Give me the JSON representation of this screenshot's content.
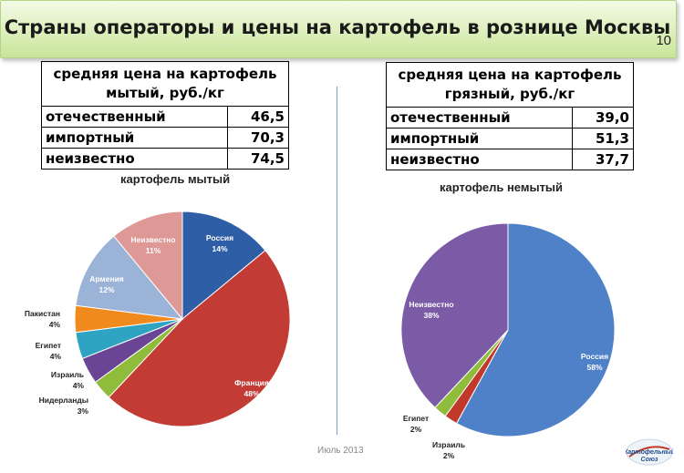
{
  "slide": {
    "title": "Страны операторы и цены на картофель  в рознице Москвы",
    "page_number": "10",
    "date": "Июль 2013",
    "logo_text": [
      "Картофельный",
      "Союз"
    ]
  },
  "price_tables": [
    {
      "header_lines": [
        "средняя цена на картофель",
        "мытый, руб./кг"
      ],
      "rows": [
        {
          "label": "отечественный",
          "value": "46,5"
        },
        {
          "label": "импортный",
          "value": "70,3"
        },
        {
          "label": "неизвестно",
          "value": "74,5"
        }
      ]
    },
    {
      "header_lines": [
        "средняя цена на картофель",
        "грязный, руб./кг"
      ],
      "rows": [
        {
          "label": "отечественный",
          "value": "39,0"
        },
        {
          "label": "импортный",
          "value": "51,3"
        },
        {
          "label": "неизвестно",
          "value": "37,7"
        }
      ]
    }
  ],
  "chart_data": [
    {
      "type": "pie",
      "title": "картофель мытый",
      "slices": [
        {
          "name": "Россия",
          "value": 14,
          "label": "14%",
          "color": "#2e5fa6"
        },
        {
          "name": "Франция",
          "value": 48,
          "label": "48%",
          "color": "#c23b35"
        },
        {
          "name": "Нидерланды",
          "value": 3,
          "label": "3%",
          "color": "#8fbc3a"
        },
        {
          "name": "Израиль",
          "value": 4,
          "label": "4%",
          "color": "#6a4596"
        },
        {
          "name": "Египет",
          "value": 4,
          "label": "4%",
          "color": "#2fa4c2"
        },
        {
          "name": "Пакистан",
          "value": 4,
          "label": "4%",
          "color": "#f08a1c"
        },
        {
          "name": "Армения",
          "value": 12,
          "label": "12%",
          "color": "#9cb3d8"
        },
        {
          "name": "Неизвестно",
          "value": 11,
          "label": "11%",
          "color": "#de9896"
        }
      ]
    },
    {
      "type": "pie",
      "title": "картофель немытый",
      "slices": [
        {
          "name": "Россия",
          "value": 58,
          "label": "58%",
          "color": "#4f81c9"
        },
        {
          "name": "Израиль",
          "value": 2,
          "label": "2%",
          "color": "#c0392b"
        },
        {
          "name": "Египет",
          "value": 2,
          "label": "2%",
          "color": "#8fbc3a"
        },
        {
          "name": "Неизвестно",
          "value": 38,
          "label": "38%",
          "color": "#7b5aa6"
        }
      ]
    }
  ]
}
